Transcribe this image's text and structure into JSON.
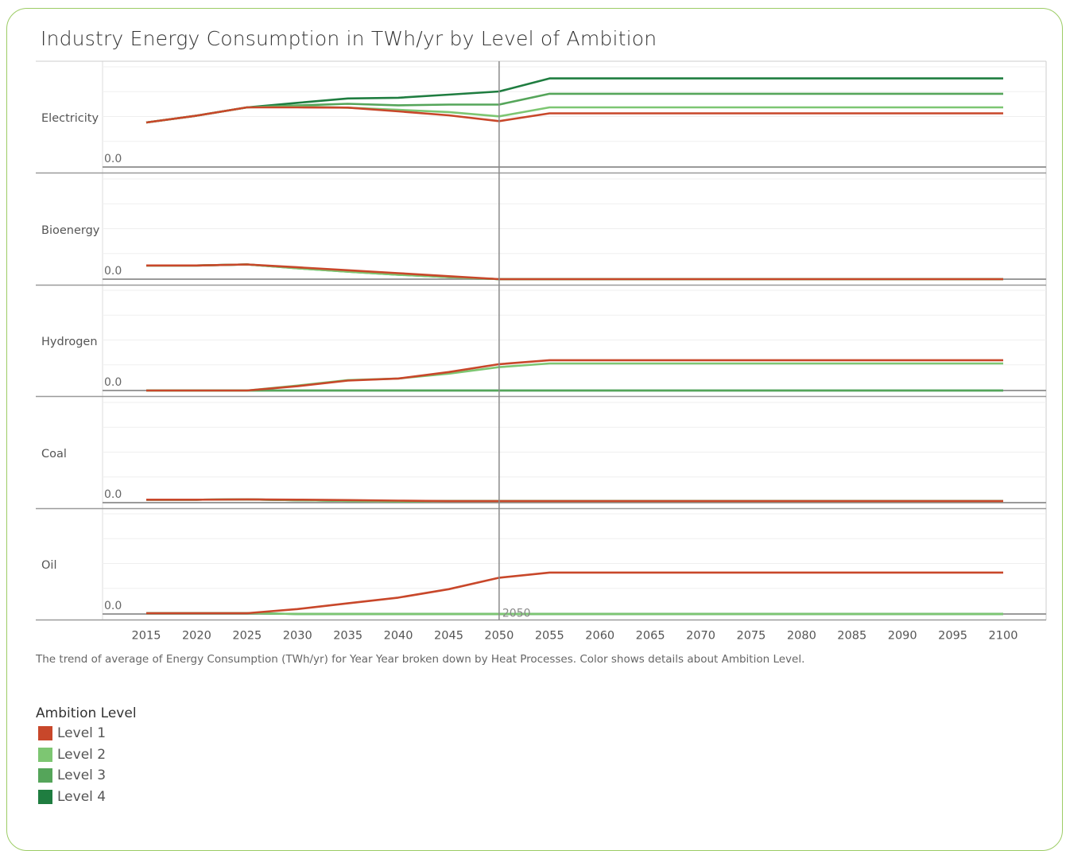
{
  "title": "Industry Energy Consumption in TWh/yr by Level of Ambition",
  "caption": "The trend of average of Energy Consumption (TWh/yr) for Year Year broken down by Heat Processes.  Color shows details about Ambition Level.",
  "legend": {
    "title": "Ambition Level",
    "items": [
      {
        "label": "Level 1",
        "color": "#c8472a"
      },
      {
        "label": "Level 2",
        "color": "#7dc672"
      },
      {
        "label": "Level 3",
        "color": "#55a55a"
      },
      {
        "label": "Level 4",
        "color": "#1f7d40"
      }
    ]
  },
  "chart_data": {
    "type": "line",
    "x": [
      2015,
      2020,
      2025,
      2030,
      2035,
      2040,
      2045,
      2050,
      2055,
      2060,
      2065,
      2070,
      2075,
      2080,
      2085,
      2090,
      2095,
      2100
    ],
    "x_ticks": [
      "2015",
      "2020",
      "2025",
      "2030",
      "2035",
      "2040",
      "2045",
      "2050",
      "2055",
      "2060",
      "2065",
      "2070",
      "2075",
      "2080",
      "2085",
      "2090",
      "2095",
      "2100"
    ],
    "reference_line": {
      "x": 2050,
      "label": "2050"
    },
    "zero_label": "0.0",
    "grid": true,
    "panels": [
      {
        "name": "Electricity",
        "series": [
          {
            "name": "Level 1",
            "values": [
              0.448,
              0.517,
              0.6,
              0.6,
              0.598,
              0.56,
              0.52,
              0.462,
              0.54,
              0.54,
              0.54,
              0.54,
              0.54,
              0.54,
              0.54,
              0.54,
              0.54,
              0.54
            ]
          },
          {
            "name": "Level 2",
            "values": [
              0.448,
              0.517,
              0.6,
              0.609,
              0.597,
              0.575,
              0.553,
              0.51,
              0.6,
              0.6,
              0.6,
              0.6,
              0.6,
              0.6,
              0.6,
              0.6,
              0.6,
              0.6
            ]
          },
          {
            "name": "Level 3",
            "values": [
              0.448,
              0.517,
              0.6,
              0.62,
              0.636,
              0.621,
              0.628,
              0.628,
              0.737,
              0.737,
              0.737,
              0.737,
              0.737,
              0.737,
              0.737,
              0.737,
              0.737,
              0.737
            ]
          },
          {
            "name": "Level 4",
            "values": [
              0.448,
              0.517,
              0.6,
              0.646,
              0.69,
              0.697,
              0.728,
              0.76,
              0.891,
              0.891,
              0.891,
              0.891,
              0.891,
              0.891,
              0.891,
              0.891,
              0.891,
              0.891
            ]
          }
        ]
      },
      {
        "name": "Bioenergy",
        "series": [
          {
            "name": "Level 1",
            "values": [
              0.138,
              0.138,
              0.148,
              0.119,
              0.09,
              0.06,
              0.03,
              0.0,
              0.0,
              0.0,
              0.0,
              0.0,
              0.0,
              0.0,
              0.0,
              0.0,
              0.0,
              0.0
            ]
          },
          {
            "name": "Level 2",
            "values": [
              0.138,
              0.138,
              0.148,
              0.11,
              0.075,
              0.045,
              0.02,
              0.0,
              0.0,
              0.0,
              0.0,
              0.0,
              0.0,
              0.0,
              0.0,
              0.0,
              0.0,
              0.0
            ]
          },
          {
            "name": "Level 3",
            "values": [
              0.138,
              0.138,
              0.148,
              0.11,
              0.075,
              0.045,
              0.02,
              0.0,
              0.0,
              0.0,
              0.0,
              0.0,
              0.0,
              0.0,
              0.0,
              0.0,
              0.0,
              0.0
            ]
          },
          {
            "name": "Level 4",
            "values": [
              0.138,
              0.138,
              0.148,
              0.112,
              0.078,
              0.047,
              0.022,
              0.0,
              0.0,
              0.0,
              0.0,
              0.0,
              0.0,
              0.0,
              0.0,
              0.0,
              0.0,
              0.0
            ]
          }
        ]
      },
      {
        "name": "Hydrogen",
        "series": [
          {
            "name": "Level 1",
            "values": [
              0.0,
              0.0,
              0.0,
              0.043,
              0.1,
              0.121,
              0.186,
              0.265,
              0.305,
              0.305,
              0.305,
              0.305,
              0.305,
              0.305,
              0.305,
              0.305,
              0.305,
              0.305
            ]
          },
          {
            "name": "Level 2",
            "values": [
              0.0,
              0.0,
              0.0,
              0.05,
              0.105,
              0.121,
              0.17,
              0.235,
              0.272,
              0.272,
              0.272,
              0.272,
              0.272,
              0.272,
              0.272,
              0.272,
              0.272,
              0.272
            ]
          },
          {
            "name": "Level 3",
            "values": [
              0.0,
              0.0,
              0.0,
              0.0,
              0.0,
              0.0,
              0.0,
              0.0,
              0.0,
              0.0,
              0.0,
              0.0,
              0.0,
              0.0,
              0.0,
              0.0,
              0.0,
              0.0
            ]
          },
          {
            "name": "Level 4",
            "values": [
              0.0,
              0.0,
              0.0,
              0.0,
              0.0,
              0.0,
              0.0,
              0.0,
              0.0,
              0.0,
              0.0,
              0.0,
              0.0,
              0.0,
              0.0,
              0.0,
              0.0,
              0.0
            ]
          }
        ]
      },
      {
        "name": "Coal",
        "series": [
          {
            "name": "Level 1",
            "values": [
              0.03,
              0.03,
              0.033,
              0.03,
              0.026,
              0.02,
              0.015,
              0.015,
              0.015,
              0.015,
              0.015,
              0.015,
              0.015,
              0.015,
              0.015,
              0.015,
              0.015,
              0.015
            ]
          },
          {
            "name": "Level 2",
            "values": [
              0.03,
              0.03,
              0.033,
              0.025,
              0.018,
              0.012,
              0.015,
              0.015,
              0.015,
              0.015,
              0.015,
              0.015,
              0.015,
              0.015,
              0.015,
              0.015,
              0.015,
              0.015
            ]
          },
          {
            "name": "Level 3",
            "values": [
              0.03,
              0.03,
              0.033,
              0.025,
              0.018,
              0.012,
              0.015,
              0.015,
              0.015,
              0.015,
              0.015,
              0.015,
              0.015,
              0.015,
              0.015,
              0.015,
              0.015,
              0.015
            ]
          },
          {
            "name": "Level 4",
            "values": [
              0.03,
              0.03,
              0.033,
              0.025,
              0.018,
              0.012,
              0.015,
              0.015,
              0.015,
              0.015,
              0.015,
              0.015,
              0.015,
              0.015,
              0.015,
              0.015,
              0.015,
              0.015
            ]
          }
        ]
      },
      {
        "name": "Oil",
        "series": [
          {
            "name": "Level 1",
            "values": [
              0.008,
              0.008,
              0.008,
              0.05,
              0.107,
              0.165,
              0.25,
              0.365,
              0.417,
              0.417,
              0.417,
              0.417,
              0.417,
              0.417,
              0.417,
              0.417,
              0.417,
              0.417
            ]
          },
          {
            "name": "Level 2",
            "values": [
              0.008,
              0.008,
              0.008,
              0.0,
              0.0,
              0.0,
              0.0,
              0.0,
              0.0,
              0.0,
              0.0,
              0.0,
              0.0,
              0.0,
              0.0,
              0.0,
              0.0,
              0.0
            ]
          },
          {
            "name": "Level 3",
            "values": [
              0.008,
              0.008,
              0.008,
              0.0,
              0.0,
              0.0,
              0.0,
              0.0,
              0.0,
              0.0,
              0.0,
              0.0,
              0.0,
              0.0,
              0.0,
              0.0,
              0.0,
              0.0
            ]
          },
          {
            "name": "Level 4",
            "values": [
              0.008,
              0.008,
              0.008,
              0.0,
              0.0,
              0.0,
              0.0,
              0.0,
              0.0,
              0.0,
              0.0,
              0.0,
              0.0,
              0.0,
              0.0,
              0.0,
              0.0,
              0.0
            ]
          }
        ]
      }
    ]
  }
}
